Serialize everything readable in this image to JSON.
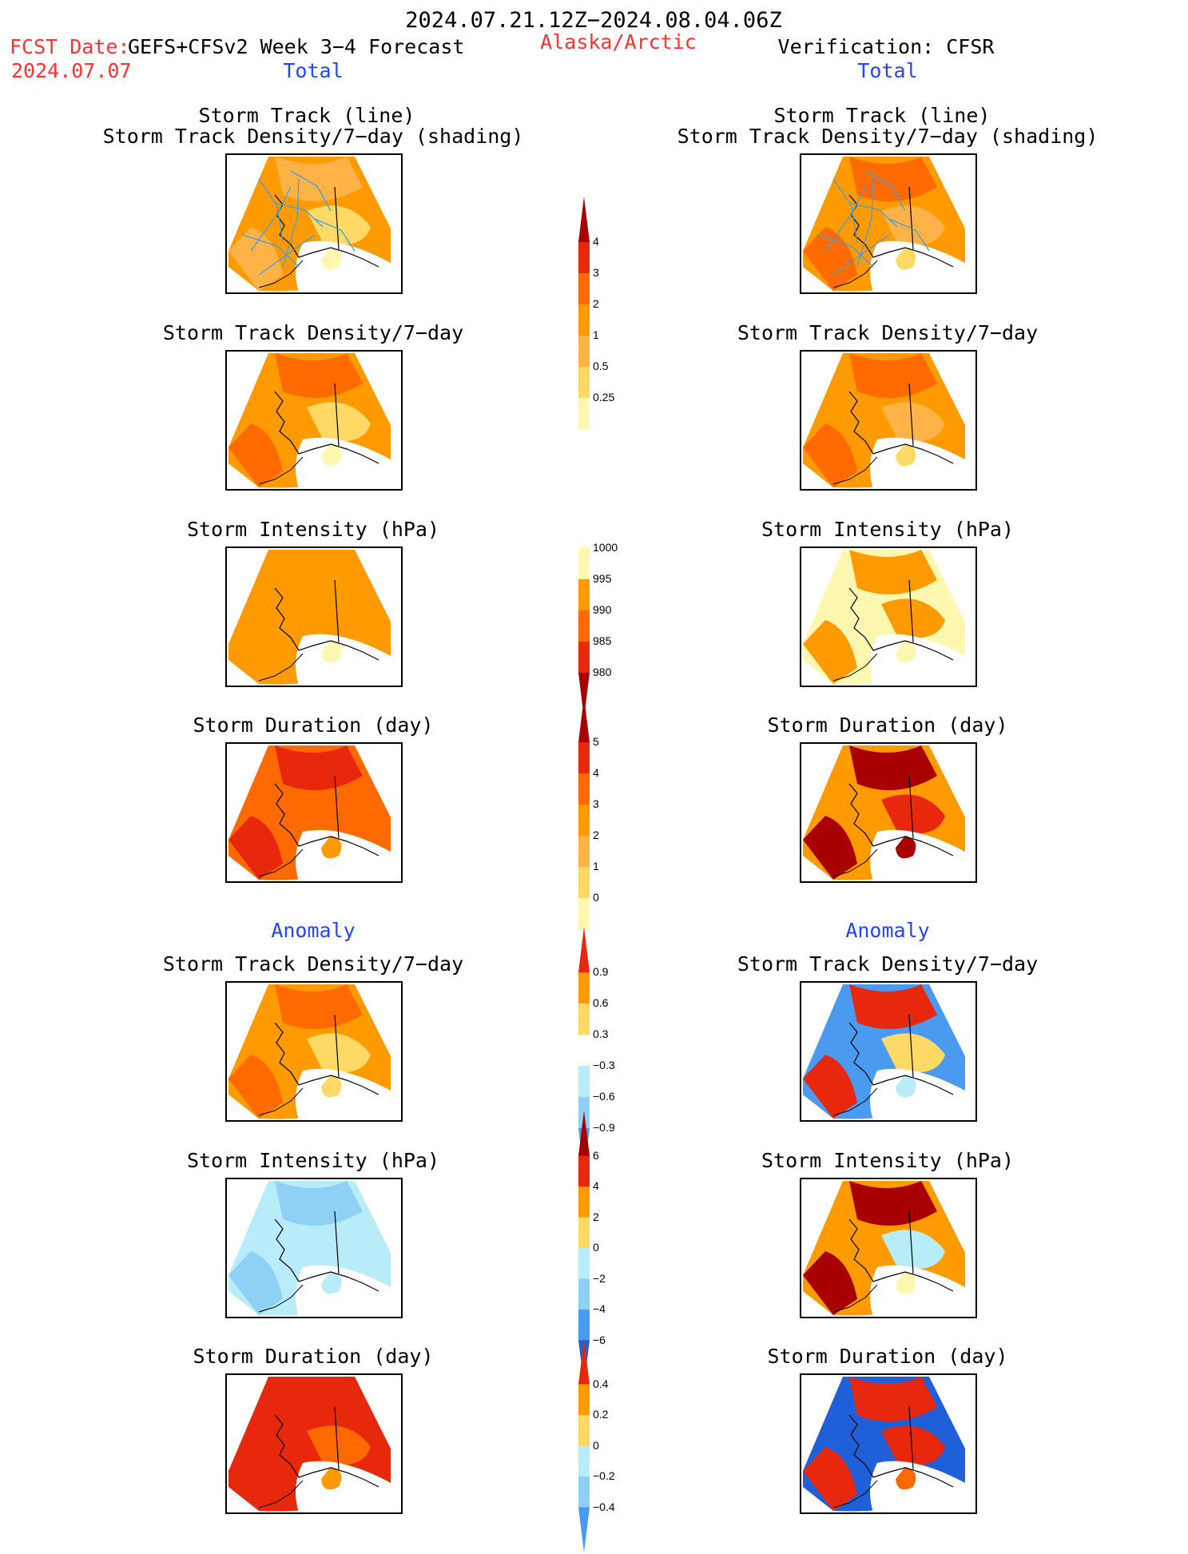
{
  "header": {
    "date_range": "2024.07.21.12Z−2024.08.04.06Z",
    "fcst_label": "FCST Date:",
    "fcst_model": "GEFS+CFSv2 Week 3−4 Forecast",
    "fcst_date": "2024.07.07",
    "region": "Alaska/Arctic",
    "verification": "Verification: CFSR"
  },
  "sections": {
    "total": "Total",
    "anomaly": "Anomaly"
  },
  "panel_titles": {
    "track_line": "Storm Track (line)",
    "track_shading": "Storm Track Density/7−day (shading)",
    "density": "Storm Track Density/7−day",
    "intensity": "Storm Intensity (hPa)",
    "duration": "Storm Duration (day)"
  },
  "colors": {
    "title_red": "#ff3030",
    "section_blue": "#2244ff",
    "c_lightyellow": "#fff7b0",
    "c_yellow": "#ffd966",
    "c_lightorange": "#ffb347",
    "c_orange": "#ff9a00",
    "c_darkorange": "#ff6a00",
    "c_red": "#e8280c",
    "c_darkred": "#a80000",
    "c_lightblue": "#b8ecf8",
    "c_skyblue": "#8fd0f5",
    "c_blue": "#4a9af0",
    "c_darkblue": "#1f60d8",
    "track_line": "#3fa0e0"
  },
  "colorbars": [
    {
      "id": "density-total",
      "labels": [
        "4",
        "3",
        "2",
        "1",
        "0.5",
        "0.25"
      ]
    },
    {
      "id": "intensity-total",
      "labels": [
        "1000",
        "995",
        "990",
        "985",
        "980"
      ]
    },
    {
      "id": "duration-total",
      "labels": [
        "5",
        "4",
        "3",
        "2",
        "1",
        "0"
      ]
    },
    {
      "id": "density-anom",
      "labels": [
        "0.9",
        "0.6",
        "0.3",
        "−0.3",
        "−0.6",
        "−0.9"
      ]
    },
    {
      "id": "intensity-anom",
      "labels": [
        "6",
        "4",
        "2",
        "0",
        "−2",
        "−4",
        "−6"
      ]
    },
    {
      "id": "duration-anom",
      "labels": [
        "0.4",
        "0.2",
        "0",
        "−0.2",
        "−0.4"
      ]
    }
  ]
}
